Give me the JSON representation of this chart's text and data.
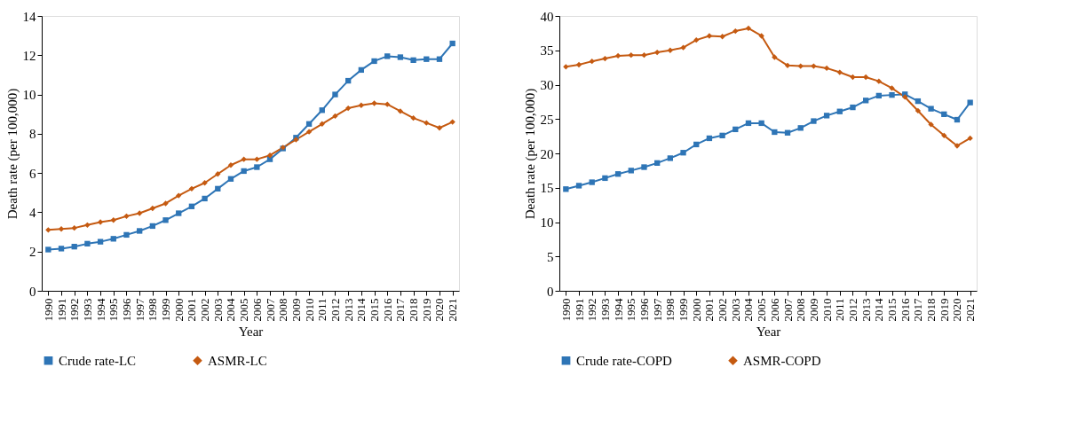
{
  "chart_data": [
    {
      "type": "line",
      "xlabel": "Year",
      "ylabel": "Death rate (per 100,000)",
      "categories": [
        "1990",
        "1991",
        "1992",
        "1993",
        "1994",
        "1995",
        "1996",
        "1997",
        "1998",
        "1999",
        "2000",
        "2001",
        "2002",
        "2003",
        "2004",
        "2005",
        "2006",
        "2007",
        "2008",
        "2009",
        "2010",
        "2011",
        "2012",
        "2013",
        "2014",
        "2015",
        "2016",
        "2017",
        "2018",
        "2019",
        "2020",
        "2021"
      ],
      "ylim": [
        0,
        14
      ],
      "yticks": [
        0,
        2,
        4,
        6,
        8,
        10,
        12,
        14
      ],
      "grid": false,
      "legend": "bottom",
      "series": [
        {
          "name": "Crude rate-LC",
          "color": "#2e75b6",
          "marker": "square",
          "values": [
            2.1,
            2.15,
            2.25,
            2.4,
            2.5,
            2.65,
            2.85,
            3.05,
            3.3,
            3.6,
            3.95,
            4.3,
            4.7,
            5.2,
            5.7,
            6.1,
            6.3,
            6.7,
            7.25,
            7.8,
            8.5,
            9.2,
            10.0,
            10.7,
            11.25,
            11.7,
            11.95,
            11.9,
            11.75,
            11.8,
            11.8,
            12.6
          ]
        },
        {
          "name": "ASMR-LC",
          "color": "#c55a11",
          "marker": "diamond",
          "values": [
            3.1,
            3.15,
            3.2,
            3.35,
            3.5,
            3.6,
            3.8,
            3.95,
            4.2,
            4.45,
            4.85,
            5.2,
            5.5,
            5.95,
            6.4,
            6.7,
            6.7,
            6.9,
            7.3,
            7.7,
            8.1,
            8.5,
            8.9,
            9.3,
            9.45,
            9.55,
            9.5,
            9.15,
            8.8,
            8.55,
            8.3,
            8.6
          ]
        }
      ]
    },
    {
      "type": "line",
      "xlabel": "Year",
      "ylabel": "Death rate (per 100,000)",
      "categories": [
        "1990",
        "1991",
        "1992",
        "1993",
        "1994",
        "1995",
        "1996",
        "1997",
        "1998",
        "1999",
        "2000",
        "2001",
        "2002",
        "2003",
        "2004",
        "2005",
        "2006",
        "2007",
        "2008",
        "2009",
        "2010",
        "2011",
        "2012",
        "2013",
        "2014",
        "2015",
        "2016",
        "2017",
        "2018",
        "2019",
        "2020",
        "2021"
      ],
      "ylim": [
        0,
        40
      ],
      "yticks": [
        0,
        5,
        10,
        15,
        20,
        25,
        30,
        35,
        40
      ],
      "grid": false,
      "legend": "bottom",
      "series": [
        {
          "name": "Crude rate-COPD",
          "color": "#2e75b6",
          "marker": "square",
          "values": [
            14.8,
            15.3,
            15.8,
            16.4,
            17.0,
            17.5,
            18.0,
            18.6,
            19.3,
            20.1,
            21.3,
            22.2,
            22.6,
            23.5,
            24.4,
            24.4,
            23.1,
            23.0,
            23.7,
            24.7,
            25.5,
            26.1,
            26.7,
            27.7,
            28.4,
            28.5,
            28.6,
            27.6,
            26.5,
            25.7,
            24.9,
            27.4
          ]
        },
        {
          "name": "ASMR-COPD",
          "color": "#c55a11",
          "marker": "diamond",
          "values": [
            32.6,
            32.9,
            33.4,
            33.8,
            34.2,
            34.3,
            34.3,
            34.7,
            35.0,
            35.4,
            36.5,
            37.1,
            37.0,
            37.8,
            38.2,
            37.1,
            34.0,
            32.8,
            32.7,
            32.7,
            32.4,
            31.8,
            31.1,
            31.1,
            30.5,
            29.5,
            28.2,
            26.2,
            24.2,
            22.6,
            21.1,
            22.2
          ]
        }
      ]
    }
  ]
}
